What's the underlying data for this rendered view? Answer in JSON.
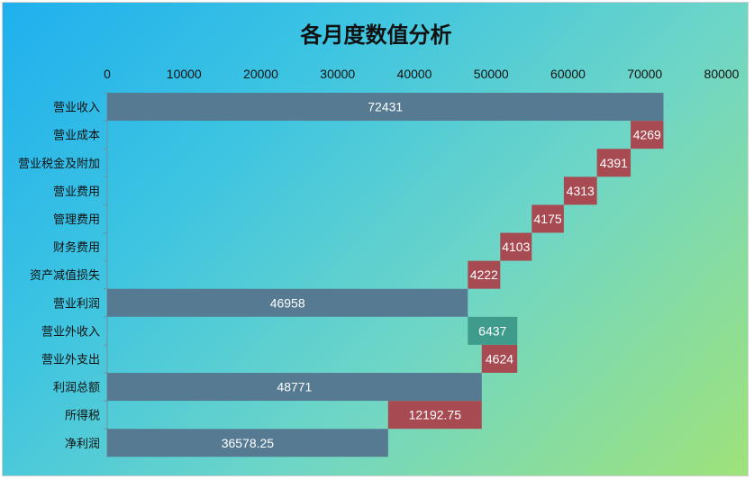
{
  "chart_data": {
    "type": "bar",
    "orientation": "horizontal",
    "subtype": "waterfall",
    "title": "各月度数值分析",
    "xlim": [
      0,
      80000
    ],
    "x_ticks": [
      "0",
      "10000",
      "20000",
      "30000",
      "40000",
      "50000",
      "60000",
      "70000",
      "80000"
    ],
    "x_axis_position": "top",
    "grid": false,
    "legend": "none",
    "colors": {
      "total": "#557a92",
      "decrease": "#a84a52",
      "increase": "#3f9b8c"
    },
    "categories": [
      "营业收入",
      "营业成本",
      "营业税金及附加",
      "营业费用",
      "管理费用",
      "财务费用",
      "资产减值损失",
      "营业利润",
      "营业外收入",
      "营业外支出",
      "利润总额",
      "所得税",
      "净利润"
    ],
    "bars": [
      {
        "start": 0,
        "value": 72431,
        "label": "72431",
        "kind": "total"
      },
      {
        "start": 68162,
        "value": 4269,
        "label": "4269",
        "kind": "decrease"
      },
      {
        "start": 63771,
        "value": 4391,
        "label": "4391",
        "kind": "decrease"
      },
      {
        "start": 59458,
        "value": 4313,
        "label": "4313",
        "kind": "decrease"
      },
      {
        "start": 55283,
        "value": 4175,
        "label": "4175",
        "kind": "decrease"
      },
      {
        "start": 51180,
        "value": 4103,
        "label": "4103",
        "kind": "decrease"
      },
      {
        "start": 46958,
        "value": 4222,
        "label": "4222",
        "kind": "decrease"
      },
      {
        "start": 0,
        "value": 46958,
        "label": "46958",
        "kind": "total"
      },
      {
        "start": 46958,
        "value": 6437,
        "label": "6437",
        "kind": "increase"
      },
      {
        "start": 48771,
        "value": 4624,
        "label": "4624",
        "kind": "decrease"
      },
      {
        "start": 0,
        "value": 48771,
        "label": "48771",
        "kind": "total"
      },
      {
        "start": 36578.25,
        "value": 12192.75,
        "label": "12192.75",
        "kind": "decrease"
      },
      {
        "start": 0,
        "value": 36578.25,
        "label": "36578.25",
        "kind": "total"
      }
    ]
  }
}
